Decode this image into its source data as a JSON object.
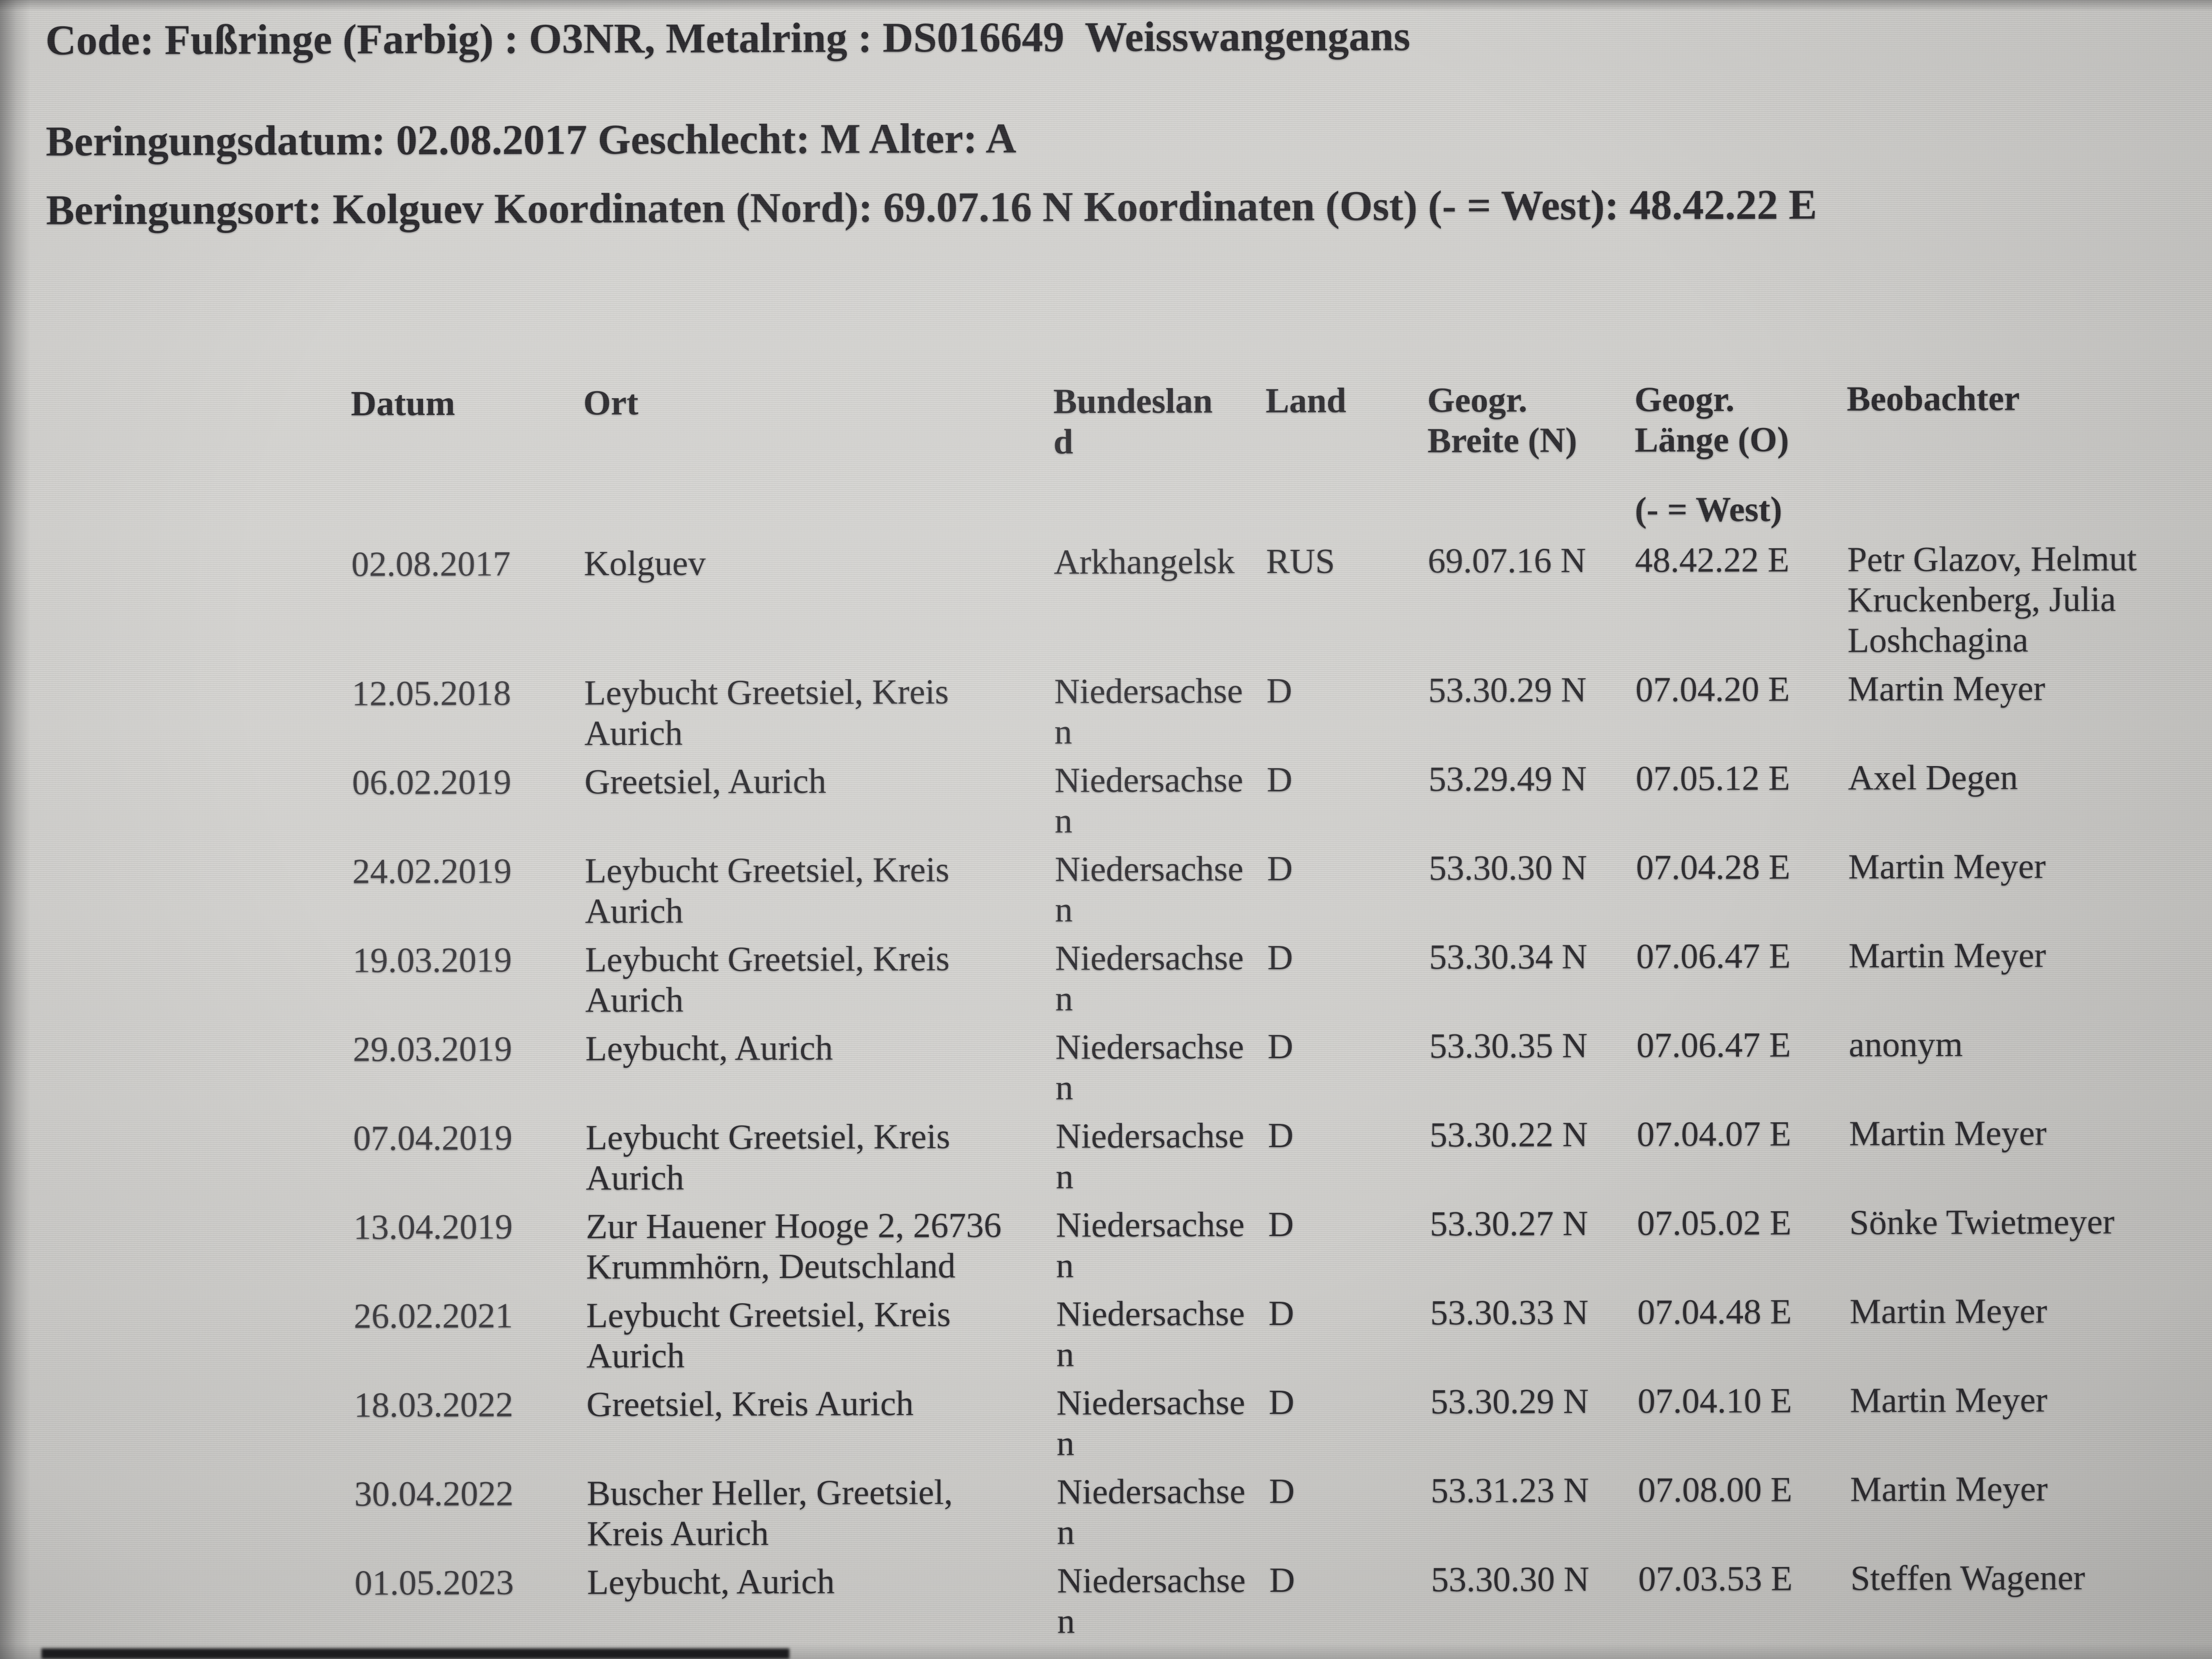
{
  "document": {
    "line1": "Code: Fußringe (Farbig) : O3NR, Metalring : DS016649  Weisswangengans",
    "line2": "Beringungsdatum: 02.08.2017 Geschlecht: M Alter: A",
    "line3": "Beringungsort: Kolguev Koordinaten (Nord): 69.07.16 N Koordinaten (Ost) (- = West): 48.42.22 E"
  },
  "table": {
    "headers": {
      "datum": "Datum",
      "ort": "Ort",
      "bundesland": "Bundesland",
      "land": "Land",
      "breite": "Geogr. Breite (N)",
      "laenge": "Geogr. Länge (O)",
      "laenge_note": "(- = West)",
      "beobachter": "Beobachter"
    },
    "rows": [
      {
        "datum": "02.08.2017",
        "ort": "Kolguev",
        "bundesland": "Arkhangelsk",
        "land": "RUS",
        "breite": "69.07.16 N",
        "laenge": "48.42.22 E",
        "beobachter": "Petr Glazov, Helmut Kruckenberg, Julia Loshchagina"
      },
      {
        "datum": "12.05.2018",
        "ort": "Leybucht Greetsiel, Kreis Aurich",
        "bundesland": "Niedersachsen",
        "land": "D",
        "breite": "53.30.29 N",
        "laenge": "07.04.20 E",
        "beobachter": "Martin Meyer"
      },
      {
        "datum": "06.02.2019",
        "ort": "Greetsiel, Aurich",
        "bundesland": "Niedersachsen",
        "land": "D",
        "breite": "53.29.49 N",
        "laenge": "07.05.12 E",
        "beobachter": "Axel Degen"
      },
      {
        "datum": "24.02.2019",
        "ort": "Leybucht Greetsiel, Kreis Aurich",
        "bundesland": "Niedersachsen",
        "land": "D",
        "breite": "53.30.30 N",
        "laenge": "07.04.28 E",
        "beobachter": "Martin Meyer"
      },
      {
        "datum": "19.03.2019",
        "ort": "Leybucht Greetsiel, Kreis Aurich",
        "bundesland": "Niedersachsen",
        "land": "D",
        "breite": "53.30.34 N",
        "laenge": "07.06.47 E",
        "beobachter": "Martin Meyer"
      },
      {
        "datum": "29.03.2019",
        "ort": "Leybucht, Aurich",
        "bundesland": "Niedersachsen",
        "land": "D",
        "breite": "53.30.35 N",
        "laenge": "07.06.47 E",
        "beobachter": "anonym"
      },
      {
        "datum": "07.04.2019",
        "ort": "Leybucht Greetsiel, Kreis Aurich",
        "bundesland": "Niedersachsen",
        "land": "D",
        "breite": "53.30.22 N",
        "laenge": "07.04.07 E",
        "beobachter": "Martin Meyer"
      },
      {
        "datum": "13.04.2019",
        "ort": "Zur Hauener Hooge 2, 26736 Krummhörn, Deutschland",
        "bundesland": "Niedersachsen",
        "land": "D",
        "breite": "53.30.27 N",
        "laenge": "07.05.02 E",
        "beobachter": "Sönke Twietmeyer"
      },
      {
        "datum": "26.02.2021",
        "ort": "Leybucht Greetsiel, Kreis Aurich",
        "bundesland": "Niedersachsen",
        "land": "D",
        "breite": "53.30.33 N",
        "laenge": "07.04.48 E",
        "beobachter": "Martin Meyer"
      },
      {
        "datum": "18.03.2022",
        "ort": "Greetsiel, Kreis Aurich",
        "bundesland": "Niedersachsen",
        "land": "D",
        "breite": "53.30.29 N",
        "laenge": "07.04.10 E",
        "beobachter": "Martin Meyer"
      },
      {
        "datum": "30.04.2022",
        "ort": "Buscher Heller, Greetsiel, Kreis Aurich",
        "bundesland": "Niedersachsen",
        "land": "D",
        "breite": "53.31.23 N",
        "laenge": "07.08.00 E",
        "beobachter": "Martin Meyer"
      },
      {
        "datum": "01.05.2023",
        "ort": "Leybucht, Aurich",
        "bundesland": "Niedersachsen",
        "land": "D",
        "breite": "53.30.30 N",
        "laenge": "07.03.53 E",
        "beobachter": "Steffen Wagener"
      }
    ]
  },
  "colors": {
    "background": "#d3d2cf",
    "text": "#28272b"
  }
}
